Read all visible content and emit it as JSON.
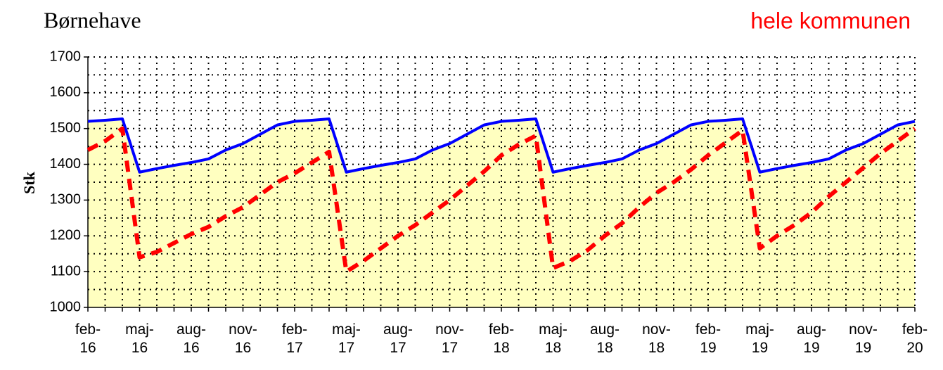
{
  "chart_data": {
    "type": "line",
    "title": "Børnehave",
    "annotation": "hele kommunen",
    "annotation_color": "#ff0000",
    "y_label": "Stk",
    "categories": [
      "feb-16",
      null,
      null,
      "maj-16",
      null,
      null,
      "aug-16",
      null,
      null,
      "nov-16",
      null,
      null,
      "feb-17",
      null,
      null,
      "maj-17",
      null,
      null,
      "aug-17",
      null,
      null,
      "nov-17",
      null,
      null,
      "feb-18",
      null,
      null,
      "maj-18",
      null,
      null,
      "aug-18",
      null,
      null,
      "nov-18",
      null,
      null,
      "feb-19",
      null,
      null,
      "maj-19",
      null,
      null,
      "aug-19",
      null,
      null,
      "nov-19",
      null,
      null,
      "feb-20"
    ],
    "series": [
      {
        "color": "#0000ff",
        "fill": "#ffffc0",
        "dashed": false,
        "values": [
          1520,
          1523,
          1527,
          1378,
          1388,
          1397,
          1405,
          1415,
          1440,
          1458,
          1484,
          1510,
          1520,
          1523,
          1527,
          1378,
          1388,
          1397,
          1405,
          1415,
          1440,
          1458,
          1484,
          1510,
          1520,
          1523,
          1527,
          1378,
          1388,
          1397,
          1405,
          1415,
          1440,
          1458,
          1484,
          1510,
          1520,
          1523,
          1527,
          1378,
          1388,
          1397,
          1405,
          1415,
          1440,
          1458,
          1484,
          1510,
          1520
        ]
      },
      {
        "color": "#ff0000",
        "fill": null,
        "dashed": true,
        "values": [
          1440,
          1465,
          1500,
          1140,
          1155,
          1180,
          1205,
          1225,
          1255,
          1280,
          1315,
          1350,
          1375,
          1405,
          1435,
          1100,
          1130,
          1165,
          1200,
          1230,
          1265,
          1300,
          1340,
          1380,
          1425,
          1455,
          1480,
          1110,
          1130,
          1160,
          1200,
          1235,
          1280,
          1320,
          1350,
          1385,
          1425,
          1460,
          1495,
          1165,
          1200,
          1230,
          1265,
          1310,
          1350,
          1390,
          1430,
          1465,
          1500
        ]
      }
    ],
    "ylim": [
      1000,
      1700
    ],
    "yticks": [
      1000,
      1100,
      1200,
      1300,
      1400,
      1500,
      1600,
      1700
    ],
    "ygrid": [
      1050,
      1100,
      1150,
      1200,
      1250,
      1300,
      1350,
      1400,
      1450,
      1500,
      1550,
      1600,
      1650,
      1700
    ],
    "xgrid": true
  }
}
